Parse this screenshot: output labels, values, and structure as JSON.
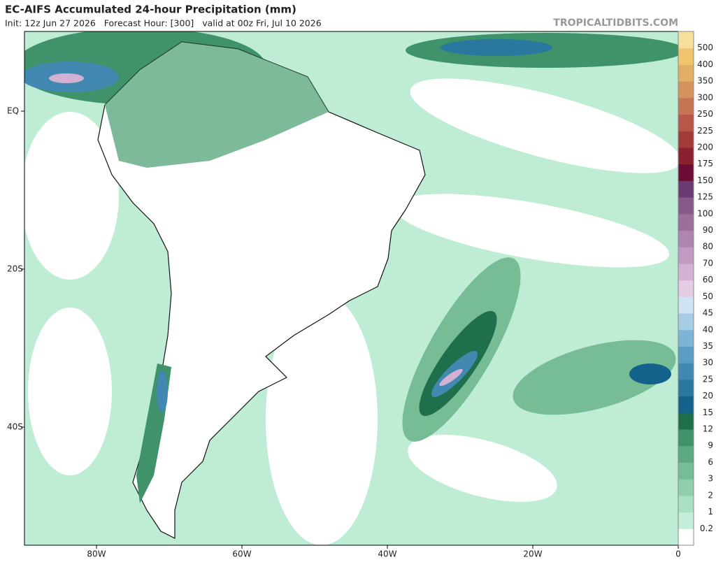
{
  "header": {
    "title": "EC-AIFS Accumulated 24-hour Precipitation (mm)",
    "subtitle": "Init: 12z Jun 27 2026   Forecast Hour: [300]   valid at 00z Fri, Jul 10 2026",
    "source": "TROPICALTIDBITS.COM"
  },
  "axes": {
    "lat_labels": [
      "EQ",
      "20S",
      "40S"
    ],
    "lon_labels": [
      "80W",
      "60W",
      "40W",
      "20W",
      "0"
    ]
  },
  "colorbar": {
    "labels": [
      "0.2",
      "1",
      "2",
      "3",
      "6",
      "9",
      "12",
      "15",
      "20",
      "25",
      "30",
      "35",
      "40",
      "45",
      "50",
      "60",
      "70",
      "80",
      "90",
      "100",
      "125",
      "150",
      "175",
      "200",
      "225",
      "250",
      "300",
      "350",
      "400",
      "500"
    ],
    "colors": [
      "#ffffff",
      "#c4eed9",
      "#a9dfc3",
      "#8fcfac",
      "#76bd96",
      "#5ca981",
      "#3f926a",
      "#1f6f4c",
      "#14628c",
      "#2a779f",
      "#4289b2",
      "#5c9dc4",
      "#7db4d6",
      "#a5cde6",
      "#cfe4f2",
      "#e3cde3",
      "#d2b1d2",
      "#c19ac1",
      "#ae85ae",
      "#9a6f9c",
      "#855a89",
      "#6a3a72",
      "#6c0b33",
      "#8a2030",
      "#a33b3a",
      "#b6574a",
      "#c57454",
      "#d4925c",
      "#e3ae65",
      "#f0c56e",
      "#f6df9a"
    ]
  }
}
